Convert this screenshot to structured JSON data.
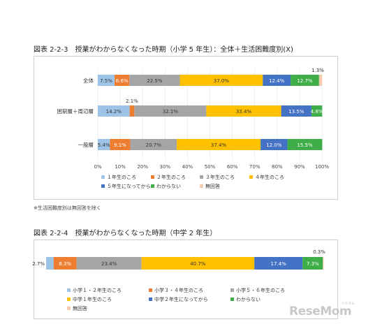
{
  "chart_data": [
    {
      "type": "bar",
      "orientation": "horizontal",
      "stacked": true,
      "title": "図表 2-2-3　授業がわからなくなった時期（小学 5 年生）：全体＋生活困難度別(X)",
      "categories": [
        "全体",
        "困窮層＋周辺層",
        "一般層"
      ],
      "xlim": [
        0,
        100
      ],
      "xticks": [
        "0%",
        "10%",
        "20%",
        "30%",
        "40%",
        "50%",
        "60%",
        "70%",
        "80%",
        "90%",
        "100%"
      ],
      "legend_position": "bottom",
      "series": [
        {
          "name": "１年生のころ",
          "color": "#9dc3e6",
          "values": [
            7.5,
            14.2,
            5.4
          ]
        },
        {
          "name": "２年生のころ",
          "color": "#ed7d31",
          "values": [
            6.6,
            2.1,
            9.1
          ]
        },
        {
          "name": "３年生のころ",
          "color": "#a5a5a5",
          "values": [
            22.5,
            32.1,
            20.7
          ]
        },
        {
          "name": "４年生のころ",
          "color": "#ffc000",
          "values": [
            37.0,
            33.4,
            37.4
          ]
        },
        {
          "name": "５年生になってから",
          "color": "#4472c4",
          "values": [
            12.4,
            13.5,
            12.0
          ]
        },
        {
          "name": "わからない",
          "color": "#3fae49",
          "values": [
            12.7,
            4.8,
            15.5
          ]
        },
        {
          "name": "無回答",
          "color": "#f8cbad",
          "values": [
            1.3,
            0,
            0
          ]
        }
      ],
      "labels": [
        [
          "7.5%",
          "6.6%",
          "22.5%",
          "37.0%",
          "12.4%",
          "12.7%",
          "1.3%"
        ],
        [
          "14.2%",
          "2.1%",
          "32.1%",
          "33.4%",
          "13.5%",
          "4.8%",
          ""
        ],
        [
          "5.4%",
          "9.1%",
          "20.7%",
          "37.4%",
          "12.0%",
          "15.5%",
          ""
        ]
      ]
    },
    {
      "type": "bar",
      "orientation": "horizontal",
      "stacked": true,
      "title": "図表 2-2-4　授業がわからなくなった時期（中学 2 年生）",
      "categories": [
        ""
      ],
      "xlim": [
        0,
        100
      ],
      "legend_position": "bottom",
      "series": [
        {
          "name": "小学１・２年生のころ",
          "color": "#9dc3e6",
          "values": [
            2.7
          ]
        },
        {
          "name": "小学３・４年生のころ",
          "color": "#ed7d31",
          "values": [
            8.3
          ]
        },
        {
          "name": "小学５・６年生のころ",
          "color": "#a5a5a5",
          "values": [
            23.4
          ]
        },
        {
          "name": "中学１年生のころ",
          "color": "#ffc000",
          "values": [
            40.7
          ]
        },
        {
          "name": "中学２年生になってから",
          "color": "#4472c4",
          "values": [
            17.4
          ]
        },
        {
          "name": "わからない",
          "color": "#3fae49",
          "values": [
            7.3
          ]
        },
        {
          "name": "無回答",
          "color": "#f8cbad",
          "values": [
            0.3
          ]
        }
      ],
      "labels": [
        [
          "2.7%",
          "8.3%",
          "23.4%",
          "40.7%",
          "17.4%",
          "7.3%",
          "0.3%"
        ]
      ]
    }
  ],
  "note": "※生活困難度別は無回答を除く",
  "watermark": "ReseMom",
  "watermark_sub": "リセマム"
}
